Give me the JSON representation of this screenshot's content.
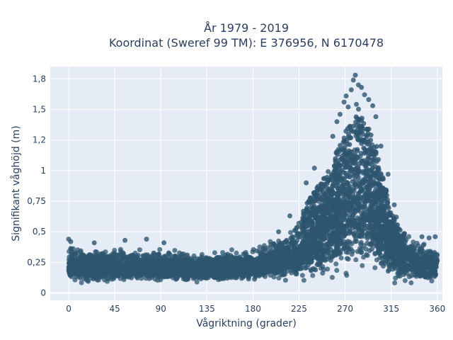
{
  "chart_data": {
    "type": "scatter",
    "title_line1": "År 1979 - 2019",
    "title_line2": "Koordinat (Sweref 99 TM): E 376956, N 6170478",
    "xlabel": "Vågriktning (grader)",
    "ylabel": "Signifikant våghöjd (m)",
    "xlim": [
      -18,
      365
    ],
    "ylim": [
      -0.06,
      1.85
    ],
    "x_ticks": [
      0,
      45,
      90,
      135,
      180,
      225,
      270,
      315,
      360
    ],
    "x_tick_labels": [
      "0",
      "45",
      "90",
      "135",
      "180",
      "225",
      "270",
      "315",
      "360"
    ],
    "y_ticks": [
      0,
      0.25,
      0.5,
      0.75,
      1,
      1.25,
      1.5,
      1.75
    ],
    "y_tick_labels": [
      "0",
      "0,25",
      "0,5",
      "0,75",
      "1",
      "1,2",
      "1,5",
      "1,8"
    ],
    "grid": true,
    "background_color": "#e5ecf6",
    "marker_color": "#2e556f",
    "envelope": {
      "x": [
        0,
        20,
        45,
        90,
        135,
        180,
        200,
        215,
        225,
        235,
        245,
        255,
        262,
        268,
        272,
        277,
        281,
        285,
        290,
        295,
        300,
        305,
        310,
        315,
        325,
        335,
        345,
        355,
        360
      ],
      "upper": [
        0.42,
        0.4,
        0.39,
        0.38,
        0.35,
        0.4,
        0.47,
        0.56,
        0.68,
        0.86,
        0.98,
        1.12,
        1.3,
        1.4,
        1.5,
        1.6,
        1.75,
        1.6,
        1.55,
        1.48,
        1.38,
        1.1,
        0.95,
        0.72,
        0.55,
        0.5,
        0.45,
        0.42,
        0.4
      ],
      "lower": [
        0.08,
        0.07,
        0.07,
        0.08,
        0.08,
        0.08,
        0.08,
        0.07,
        0.06,
        0.05,
        0.05,
        0.05,
        0.04,
        0.04,
        0.04,
        0.04,
        0.04,
        0.04,
        0.04,
        0.04,
        0.05,
        0.05,
        0.05,
        0.06,
        0.07,
        0.07,
        0.07,
        0.08,
        0.09
      ]
    },
    "peak_points": [
      {
        "x": 280,
        "y": 1.78
      },
      {
        "x": 278,
        "y": 1.74
      },
      {
        "x": 283,
        "y": 1.7
      },
      {
        "x": 276,
        "y": 1.66
      },
      {
        "x": 286,
        "y": 1.68
      },
      {
        "x": 271,
        "y": 1.61
      },
      {
        "x": 289,
        "y": 1.62
      },
      {
        "x": 269,
        "y": 1.56
      },
      {
        "x": 293,
        "y": 1.58
      },
      {
        "x": 273,
        "y": 1.52
      },
      {
        "x": 297,
        "y": 1.53
      },
      {
        "x": 265,
        "y": 1.46
      },
      {
        "x": 300,
        "y": 1.44
      },
      {
        "x": 262,
        "y": 1.4
      },
      {
        "x": 305,
        "y": 1.2
      },
      {
        "x": 258,
        "y": 1.28
      },
      {
        "x": 240,
        "y": 1.02
      },
      {
        "x": 232,
        "y": 0.9
      },
      {
        "x": 312,
        "y": 0.97
      },
      {
        "x": 318,
        "y": 0.72
      },
      {
        "x": 320,
        "y": 0.62
      },
      {
        "x": 0,
        "y": 0.44
      },
      {
        "x": 2,
        "y": 0.42
      },
      {
        "x": 25,
        "y": 0.41
      },
      {
        "x": 55,
        "y": 0.43
      },
      {
        "x": 76,
        "y": 0.44
      },
      {
        "x": 93,
        "y": 0.41
      },
      {
        "x": 205,
        "y": 0.5
      },
      {
        "x": 216,
        "y": 0.63
      },
      {
        "x": 345,
        "y": 0.46
      },
      {
        "x": 352,
        "y": 0.45
      },
      {
        "x": 358,
        "y": 0.46
      }
    ]
  }
}
